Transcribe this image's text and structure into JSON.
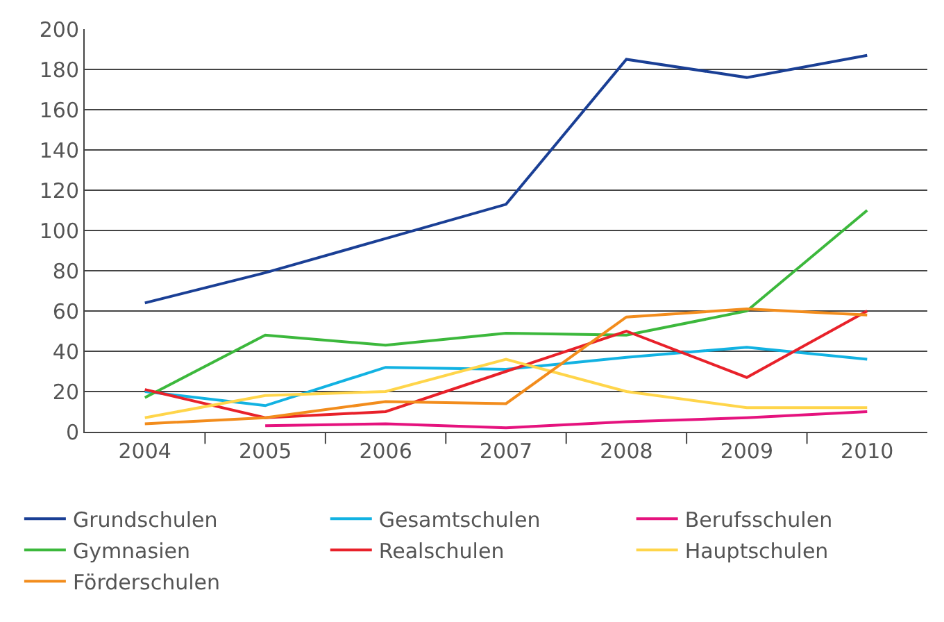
{
  "chart_data": {
    "type": "line",
    "categories": [
      "2004",
      "2005",
      "2006",
      "2007",
      "2008",
      "2009",
      "2010"
    ],
    "series": [
      {
        "name": "Grundschulen",
        "color": "#1a3f95",
        "values": [
          64,
          79,
          96,
          113,
          185,
          176,
          187
        ]
      },
      {
        "name": "Gesamtschulen",
        "color": "#12b2e2",
        "values": [
          20,
          13,
          32,
          31,
          37,
          42,
          36
        ]
      },
      {
        "name": "Berufsschulen",
        "color": "#e5137e",
        "values": [
          null,
          3,
          4,
          2,
          5,
          7,
          10
        ]
      },
      {
        "name": "Gymnasien",
        "color": "#3cb83c",
        "values": [
          17,
          48,
          43,
          49,
          48,
          60,
          110
        ]
      },
      {
        "name": "Realschulen",
        "color": "#e8212a",
        "values": [
          21,
          7,
          10,
          30,
          50,
          27,
          60
        ]
      },
      {
        "name": "Hauptschulen",
        "color": "#ffd54a",
        "values": [
          7,
          18,
          20,
          36,
          20,
          12,
          12
        ]
      },
      {
        "name": "Förderschulen",
        "color": "#f28c1c",
        "values": [
          4,
          7,
          15,
          14,
          57,
          61,
          58
        ]
      }
    ],
    "ylim": [
      0,
      200
    ],
    "yticks": [
      0,
      20,
      40,
      60,
      80,
      100,
      120,
      140,
      160,
      180,
      200
    ],
    "grid": "y",
    "legend": "bottom",
    "marker": "none",
    "line_style": "solid"
  }
}
